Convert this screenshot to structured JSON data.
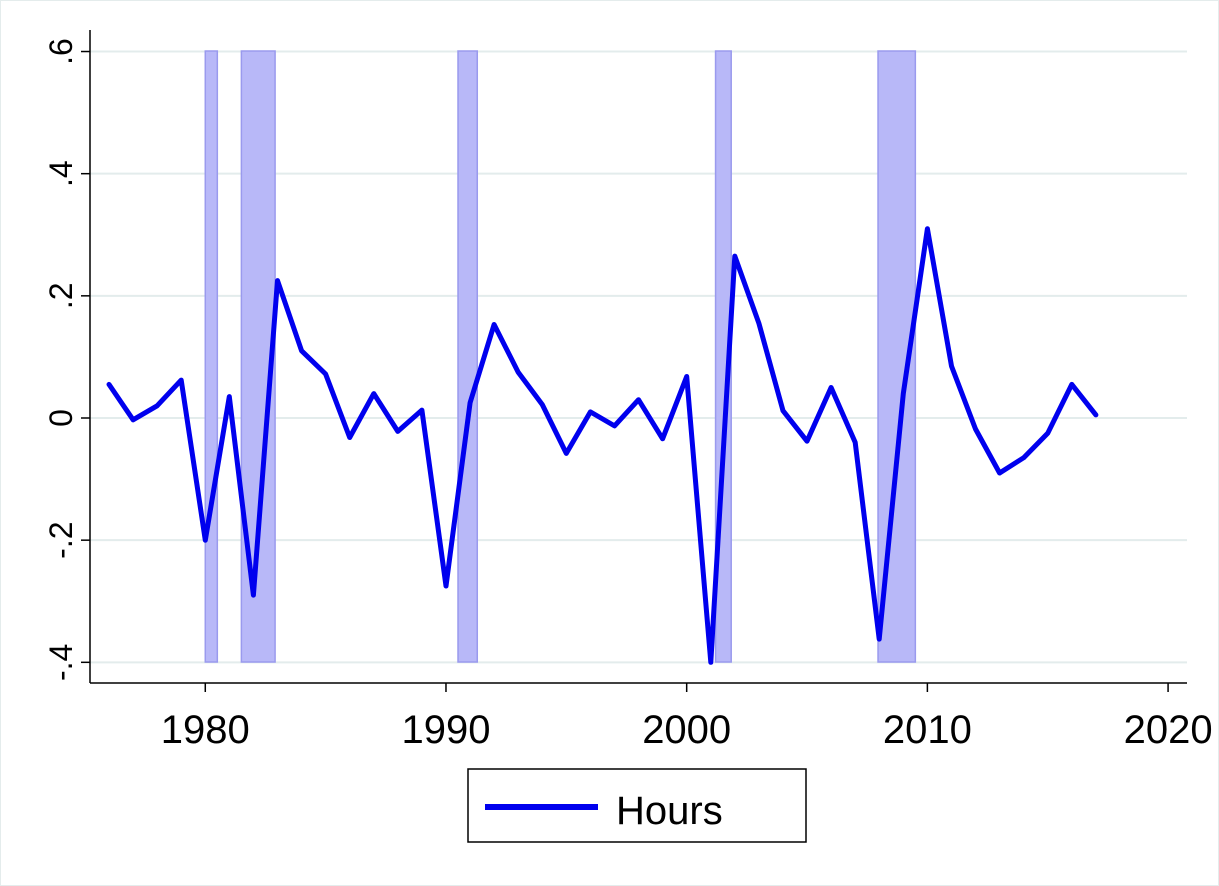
{
  "chart_data": {
    "type": "line",
    "title": "",
    "xlabel": "",
    "ylabel": "",
    "xlim": [
      1975.5,
      2021
    ],
    "ylim": [
      -0.43,
      0.6
    ],
    "grid": true,
    "legend_position": "bottom",
    "x_ticks": [
      1980,
      1990,
      2000,
      2010,
      2020
    ],
    "x_tick_labels": [
      "1980",
      "1990",
      "2000",
      "2010",
      "2020"
    ],
    "y_ticks": [
      -0.4,
      -0.2,
      0,
      0.2,
      0.4,
      0.6
    ],
    "y_tick_labels": [
      "-.4",
      "-.2",
      "0",
      ".2",
      ".4",
      ".6"
    ],
    "recession_shading": {
      "color": "#b8b8f8",
      "edge_color": "#9a9aee",
      "ranges": [
        [
          1980.0,
          1980.5
        ],
        [
          1981.5,
          1982.9
        ],
        [
          1990.5,
          1991.3
        ],
        [
          2001.2,
          2001.85
        ],
        [
          2007.95,
          2009.5
        ]
      ]
    },
    "series": [
      {
        "name": "Hours",
        "color": "#0000ee",
        "x": [
          1976,
          1977,
          1978,
          1979,
          1980,
          1981,
          1982,
          1983,
          1984,
          1985,
          1986,
          1987,
          1988,
          1989,
          1990,
          1991,
          1992,
          1993,
          1994,
          1995,
          1996,
          1997,
          1998,
          1999,
          2000,
          2001,
          2002,
          2003,
          2004,
          2005,
          2006,
          2007,
          2008,
          2009,
          2010,
          2011,
          2012,
          2013,
          2014,
          2015,
          2016,
          2017
        ],
        "y": [
          0.055,
          -0.003,
          0.02,
          0.062,
          -0.2,
          0.035,
          -0.29,
          0.225,
          0.11,
          0.072,
          -0.032,
          0.04,
          -0.022,
          0.013,
          -0.275,
          0.025,
          0.153,
          0.075,
          0.022,
          -0.058,
          0.01,
          -0.013,
          0.03,
          -0.034,
          0.068,
          -0.4,
          0.265,
          0.155,
          0.012,
          -0.038,
          0.05,
          -0.04,
          -0.362,
          0.04,
          0.31,
          0.085,
          -0.018,
          -0.09,
          -0.065,
          -0.025,
          0.055,
          0.005
        ]
      }
    ]
  }
}
